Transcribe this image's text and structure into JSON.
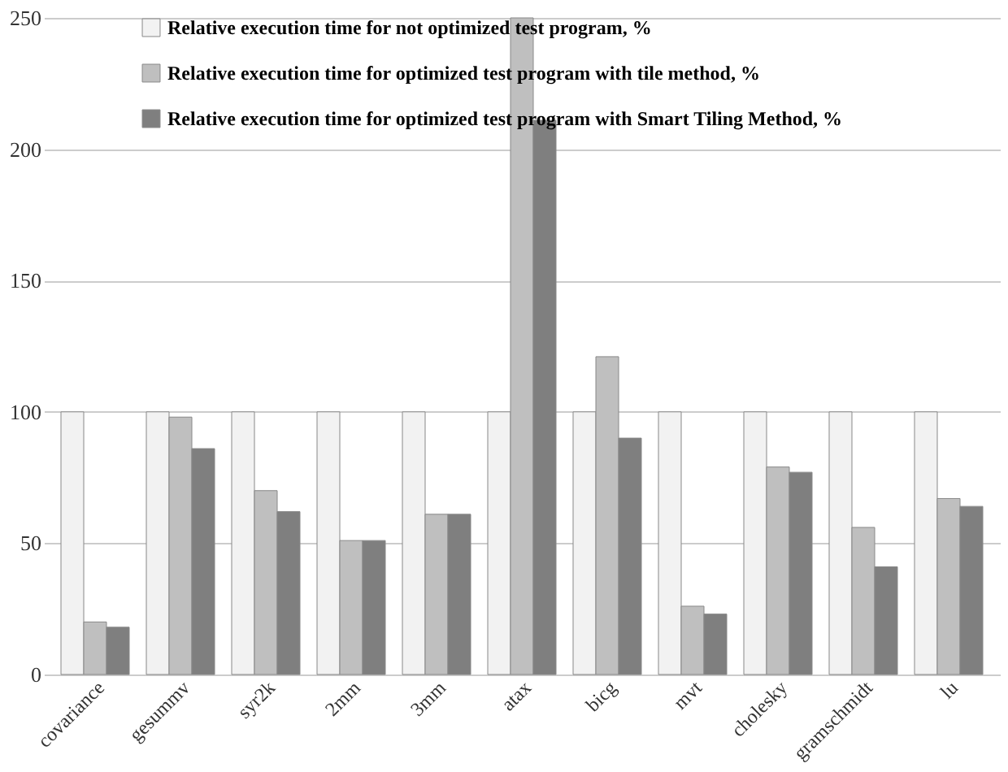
{
  "chart_data": {
    "type": "bar",
    "categories": [
      "covariance",
      "gesummv",
      "syr2k",
      "2mm",
      "3mm",
      "atax",
      "bicg",
      "mvt",
      "cholesky",
      "gramschmidt",
      "lu"
    ],
    "series": [
      {
        "name": "Relative execution time for not optimized test program, %",
        "color": "#f2f2f2",
        "values": [
          100,
          100,
          100,
          100,
          100,
          100,
          100,
          100,
          100,
          100,
          100
        ]
      },
      {
        "name": "Relative execution time for optimized test program with tile method, %",
        "color": "#bfbfbf",
        "values": [
          20,
          98,
          70,
          51,
          61,
          250,
          121,
          26,
          79,
          56,
          67
        ]
      },
      {
        "name": "Relative execution time for optimized test program with Smart Tiling Method, %",
        "color": "#7f7f7f",
        "values": [
          18,
          86,
          62,
          51,
          61,
          211,
          90,
          23,
          77,
          41,
          64
        ]
      }
    ],
    "ylim": [
      0,
      250
    ],
    "yticks": [
      0,
      50,
      100,
      150,
      200,
      250
    ],
    "grid": "y",
    "legend": "top"
  }
}
